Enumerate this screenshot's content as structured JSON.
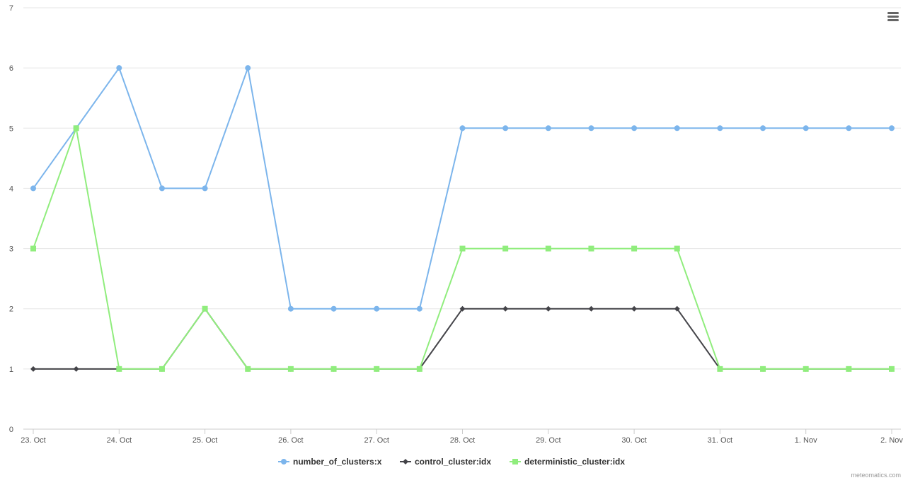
{
  "chart_data": {
    "type": "line",
    "x_categories": [
      "23. Oct",
      "",
      "24. Oct",
      "",
      "25. Oct",
      "",
      "26. Oct",
      "",
      "27. Oct",
      "",
      "28. Oct",
      "",
      "29. Oct",
      "",
      "30. Oct",
      "",
      "31. Oct",
      "",
      "1. Nov",
      "",
      "2. Nov"
    ],
    "x_tick_labels": [
      "23. Oct",
      "24. Oct",
      "25. Oct",
      "26. Oct",
      "27. Oct",
      "28. Oct",
      "29. Oct",
      "30. Oct",
      "31. Oct",
      "1. Nov",
      "2. Nov"
    ],
    "y_tick_labels": [
      "0",
      "1",
      "2",
      "3",
      "4",
      "5",
      "6",
      "7"
    ],
    "ylim": [
      0,
      7
    ],
    "grid": true,
    "legend_position": "bottom-center",
    "series": [
      {
        "name": "number_of_clusters:x",
        "color": "#7cb5ec",
        "marker": "circle",
        "values": [
          4,
          5,
          6,
          4,
          4,
          6,
          2,
          2,
          2,
          2,
          5,
          5,
          5,
          5,
          5,
          5,
          5,
          5,
          5,
          5,
          5
        ]
      },
      {
        "name": "control_cluster:idx",
        "color": "#434348",
        "marker": "diamond",
        "values": [
          1,
          1,
          1,
          1,
          2,
          1,
          1,
          1,
          1,
          1,
          2,
          2,
          2,
          2,
          2,
          2,
          1,
          1,
          1,
          1,
          1
        ]
      },
      {
        "name": "deterministic_cluster:idx",
        "color": "#90ed7d",
        "marker": "square",
        "values": [
          3,
          5,
          1,
          1,
          2,
          1,
          1,
          1,
          1,
          1,
          3,
          3,
          3,
          3,
          3,
          3,
          1,
          1,
          1,
          1,
          1
        ]
      }
    ]
  },
  "credits": "meteomatics.com",
  "menu_icon": "hamburger-menu-icon"
}
